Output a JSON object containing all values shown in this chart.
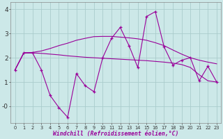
{
  "x": [
    0,
    1,
    2,
    3,
    4,
    5,
    6,
    7,
    8,
    9,
    10,
    11,
    12,
    13,
    14,
    15,
    16,
    17,
    18,
    19,
    20,
    21,
    22,
    23
  ],
  "jagged_y": [
    1.5,
    2.2,
    2.2,
    1.5,
    0.45,
    -0.05,
    -0.45,
    1.35,
    0.85,
    0.6,
    2.0,
    2.8,
    3.25,
    2.5,
    1.6,
    3.7,
    3.9,
    2.45,
    1.7,
    1.9,
    2.0,
    1.05,
    1.65,
    1.0
  ],
  "smooth_upper_y": [
    1.5,
    2.2,
    2.22,
    2.28,
    2.38,
    2.5,
    2.6,
    2.72,
    2.8,
    2.87,
    2.88,
    2.88,
    2.85,
    2.82,
    2.78,
    2.72,
    2.62,
    2.5,
    2.32,
    2.15,
    2.0,
    1.9,
    1.82,
    1.75
  ],
  "smooth_lower_y": [
    1.5,
    2.2,
    2.2,
    2.18,
    2.15,
    2.12,
    2.08,
    2.05,
    2.02,
    2.0,
    1.98,
    1.96,
    1.94,
    1.92,
    1.9,
    1.88,
    1.85,
    1.82,
    1.78,
    1.72,
    1.6,
    1.3,
    1.05,
    1.0
  ],
  "line_color": "#990099",
  "bg_color": "#cce8e8",
  "grid_color": "#aacccc",
  "xlabel": "Windchill (Refroidissement éolien,°C)",
  "ylim": [
    -0.7,
    4.3
  ],
  "xlim": [
    -0.5,
    23.5
  ],
  "ytick_vals": [
    4,
    3,
    2,
    1,
    0
  ],
  "ytick_labels": [
    "4",
    "3",
    "2",
    "1",
    "-0"
  ]
}
